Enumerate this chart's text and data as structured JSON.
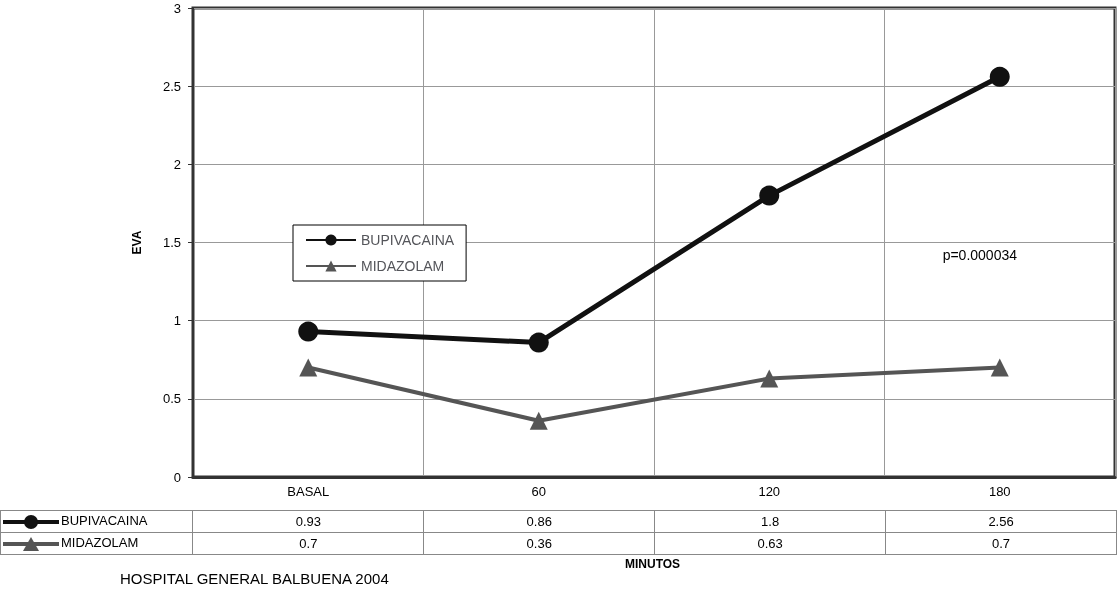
{
  "chart_data": {
    "type": "line",
    "xlabel": "MINUTOS",
    "ylabel": "EVA",
    "categories": [
      "BASAL",
      "60",
      "120",
      "180"
    ],
    "series": [
      {
        "name": "BUPIVACAINA",
        "color": "#111111",
        "marker": "circle",
        "values": [
          0.93,
          0.86,
          1.8,
          2.56
        ]
      },
      {
        "name": "MIDAZOLAM",
        "color": "#555555",
        "marker": "triangle",
        "values": [
          0.7,
          0.36,
          0.63,
          0.7
        ]
      }
    ],
    "ylim": [
      0,
      3
    ],
    "yticks": [
      0,
      0.5,
      1,
      1.5,
      2,
      2.5,
      3
    ],
    "grid": true,
    "legend": "left",
    "data_labels": true,
    "annotations": [
      "p=0.000034",
      "HOSPITAL GENERAL BALBUENA 2004"
    ]
  }
}
